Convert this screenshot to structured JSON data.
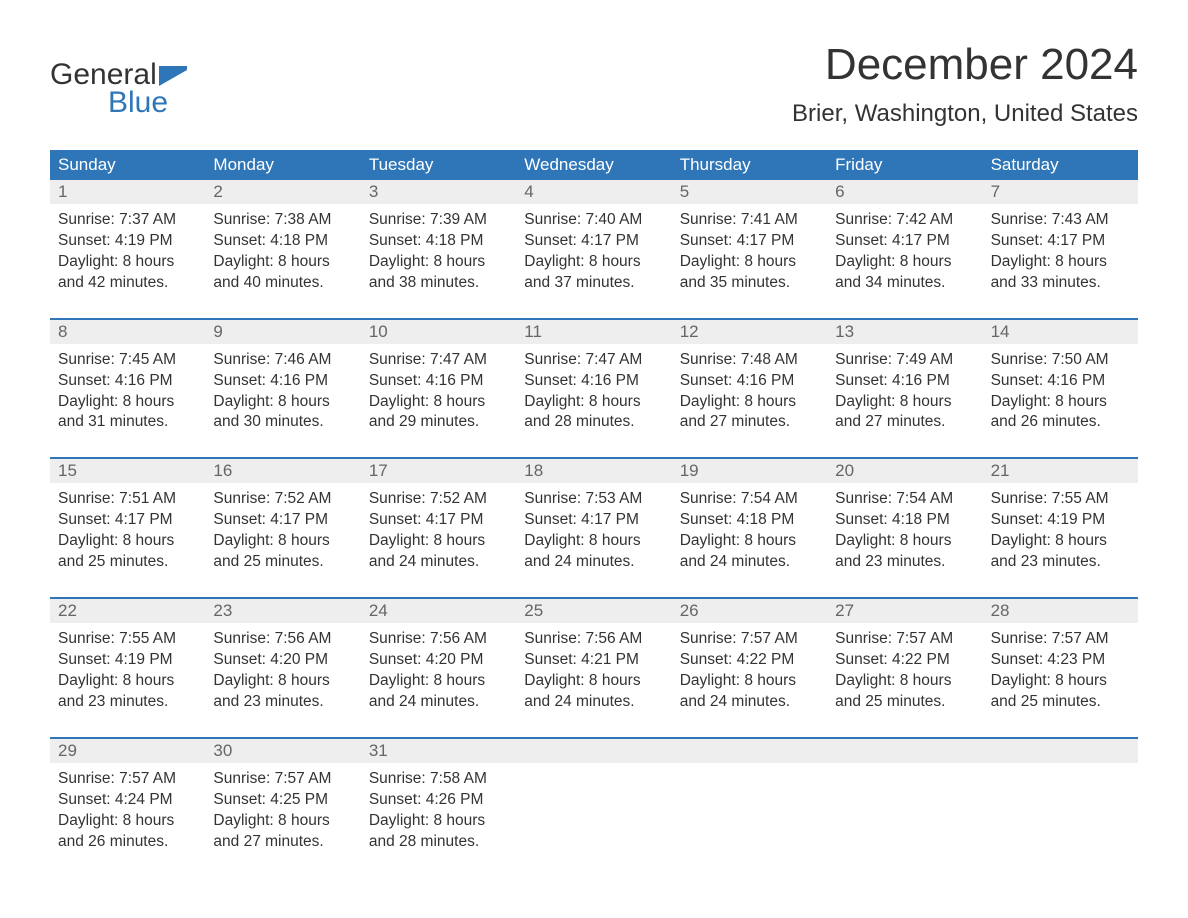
{
  "logo": {
    "text_top": "General",
    "text_bottom": "Blue",
    "flag_color": "#2f76b8"
  },
  "title": "December 2024",
  "location": "Brier, Washington, United States",
  "colors": {
    "header_bg": "#2f76b8",
    "header_text": "#ffffff",
    "daynum_bg": "#eeeeee",
    "daynum_text": "#666666",
    "body_text": "#333333",
    "week_border": "#2f76b8",
    "page_bg": "#ffffff"
  },
  "days_of_week": [
    "Sunday",
    "Monday",
    "Tuesday",
    "Wednesday",
    "Thursday",
    "Friday",
    "Saturday"
  ],
  "weeks": [
    [
      {
        "n": "1",
        "sunrise": "Sunrise: 7:37 AM",
        "sunset": "Sunset: 4:19 PM",
        "d1": "Daylight: 8 hours",
        "d2": "and 42 minutes."
      },
      {
        "n": "2",
        "sunrise": "Sunrise: 7:38 AM",
        "sunset": "Sunset: 4:18 PM",
        "d1": "Daylight: 8 hours",
        "d2": "and 40 minutes."
      },
      {
        "n": "3",
        "sunrise": "Sunrise: 7:39 AM",
        "sunset": "Sunset: 4:18 PM",
        "d1": "Daylight: 8 hours",
        "d2": "and 38 minutes."
      },
      {
        "n": "4",
        "sunrise": "Sunrise: 7:40 AM",
        "sunset": "Sunset: 4:17 PM",
        "d1": "Daylight: 8 hours",
        "d2": "and 37 minutes."
      },
      {
        "n": "5",
        "sunrise": "Sunrise: 7:41 AM",
        "sunset": "Sunset: 4:17 PM",
        "d1": "Daylight: 8 hours",
        "d2": "and 35 minutes."
      },
      {
        "n": "6",
        "sunrise": "Sunrise: 7:42 AM",
        "sunset": "Sunset: 4:17 PM",
        "d1": "Daylight: 8 hours",
        "d2": "and 34 minutes."
      },
      {
        "n": "7",
        "sunrise": "Sunrise: 7:43 AM",
        "sunset": "Sunset: 4:17 PM",
        "d1": "Daylight: 8 hours",
        "d2": "and 33 minutes."
      }
    ],
    [
      {
        "n": "8",
        "sunrise": "Sunrise: 7:45 AM",
        "sunset": "Sunset: 4:16 PM",
        "d1": "Daylight: 8 hours",
        "d2": "and 31 minutes."
      },
      {
        "n": "9",
        "sunrise": "Sunrise: 7:46 AM",
        "sunset": "Sunset: 4:16 PM",
        "d1": "Daylight: 8 hours",
        "d2": "and 30 minutes."
      },
      {
        "n": "10",
        "sunrise": "Sunrise: 7:47 AM",
        "sunset": "Sunset: 4:16 PM",
        "d1": "Daylight: 8 hours",
        "d2": "and 29 minutes."
      },
      {
        "n": "11",
        "sunrise": "Sunrise: 7:47 AM",
        "sunset": "Sunset: 4:16 PM",
        "d1": "Daylight: 8 hours",
        "d2": "and 28 minutes."
      },
      {
        "n": "12",
        "sunrise": "Sunrise: 7:48 AM",
        "sunset": "Sunset: 4:16 PM",
        "d1": "Daylight: 8 hours",
        "d2": "and 27 minutes."
      },
      {
        "n": "13",
        "sunrise": "Sunrise: 7:49 AM",
        "sunset": "Sunset: 4:16 PM",
        "d1": "Daylight: 8 hours",
        "d2": "and 27 minutes."
      },
      {
        "n": "14",
        "sunrise": "Sunrise: 7:50 AM",
        "sunset": "Sunset: 4:16 PM",
        "d1": "Daylight: 8 hours",
        "d2": "and 26 minutes."
      }
    ],
    [
      {
        "n": "15",
        "sunrise": "Sunrise: 7:51 AM",
        "sunset": "Sunset: 4:17 PM",
        "d1": "Daylight: 8 hours",
        "d2": "and 25 minutes."
      },
      {
        "n": "16",
        "sunrise": "Sunrise: 7:52 AM",
        "sunset": "Sunset: 4:17 PM",
        "d1": "Daylight: 8 hours",
        "d2": "and 25 minutes."
      },
      {
        "n": "17",
        "sunrise": "Sunrise: 7:52 AM",
        "sunset": "Sunset: 4:17 PM",
        "d1": "Daylight: 8 hours",
        "d2": "and 24 minutes."
      },
      {
        "n": "18",
        "sunrise": "Sunrise: 7:53 AM",
        "sunset": "Sunset: 4:17 PM",
        "d1": "Daylight: 8 hours",
        "d2": "and 24 minutes."
      },
      {
        "n": "19",
        "sunrise": "Sunrise: 7:54 AM",
        "sunset": "Sunset: 4:18 PM",
        "d1": "Daylight: 8 hours",
        "d2": "and 24 minutes."
      },
      {
        "n": "20",
        "sunrise": "Sunrise: 7:54 AM",
        "sunset": "Sunset: 4:18 PM",
        "d1": "Daylight: 8 hours",
        "d2": "and 23 minutes."
      },
      {
        "n": "21",
        "sunrise": "Sunrise: 7:55 AM",
        "sunset": "Sunset: 4:19 PM",
        "d1": "Daylight: 8 hours",
        "d2": "and 23 minutes."
      }
    ],
    [
      {
        "n": "22",
        "sunrise": "Sunrise: 7:55 AM",
        "sunset": "Sunset: 4:19 PM",
        "d1": "Daylight: 8 hours",
        "d2": "and 23 minutes."
      },
      {
        "n": "23",
        "sunrise": "Sunrise: 7:56 AM",
        "sunset": "Sunset: 4:20 PM",
        "d1": "Daylight: 8 hours",
        "d2": "and 23 minutes."
      },
      {
        "n": "24",
        "sunrise": "Sunrise: 7:56 AM",
        "sunset": "Sunset: 4:20 PM",
        "d1": "Daylight: 8 hours",
        "d2": "and 24 minutes."
      },
      {
        "n": "25",
        "sunrise": "Sunrise: 7:56 AM",
        "sunset": "Sunset: 4:21 PM",
        "d1": "Daylight: 8 hours",
        "d2": "and 24 minutes."
      },
      {
        "n": "26",
        "sunrise": "Sunrise: 7:57 AM",
        "sunset": "Sunset: 4:22 PM",
        "d1": "Daylight: 8 hours",
        "d2": "and 24 minutes."
      },
      {
        "n": "27",
        "sunrise": "Sunrise: 7:57 AM",
        "sunset": "Sunset: 4:22 PM",
        "d1": "Daylight: 8 hours",
        "d2": "and 25 minutes."
      },
      {
        "n": "28",
        "sunrise": "Sunrise: 7:57 AM",
        "sunset": "Sunset: 4:23 PM",
        "d1": "Daylight: 8 hours",
        "d2": "and 25 minutes."
      }
    ],
    [
      {
        "n": "29",
        "sunrise": "Sunrise: 7:57 AM",
        "sunset": "Sunset: 4:24 PM",
        "d1": "Daylight: 8 hours",
        "d2": "and 26 minutes."
      },
      {
        "n": "30",
        "sunrise": "Sunrise: 7:57 AM",
        "sunset": "Sunset: 4:25 PM",
        "d1": "Daylight: 8 hours",
        "d2": "and 27 minutes."
      },
      {
        "n": "31",
        "sunrise": "Sunrise: 7:58 AM",
        "sunset": "Sunset: 4:26 PM",
        "d1": "Daylight: 8 hours",
        "d2": "and 28 minutes."
      },
      {
        "n": "",
        "sunrise": "",
        "sunset": "",
        "d1": "",
        "d2": ""
      },
      {
        "n": "",
        "sunrise": "",
        "sunset": "",
        "d1": "",
        "d2": ""
      },
      {
        "n": "",
        "sunrise": "",
        "sunset": "",
        "d1": "",
        "d2": ""
      },
      {
        "n": "",
        "sunrise": "",
        "sunset": "",
        "d1": "",
        "d2": ""
      }
    ]
  ]
}
